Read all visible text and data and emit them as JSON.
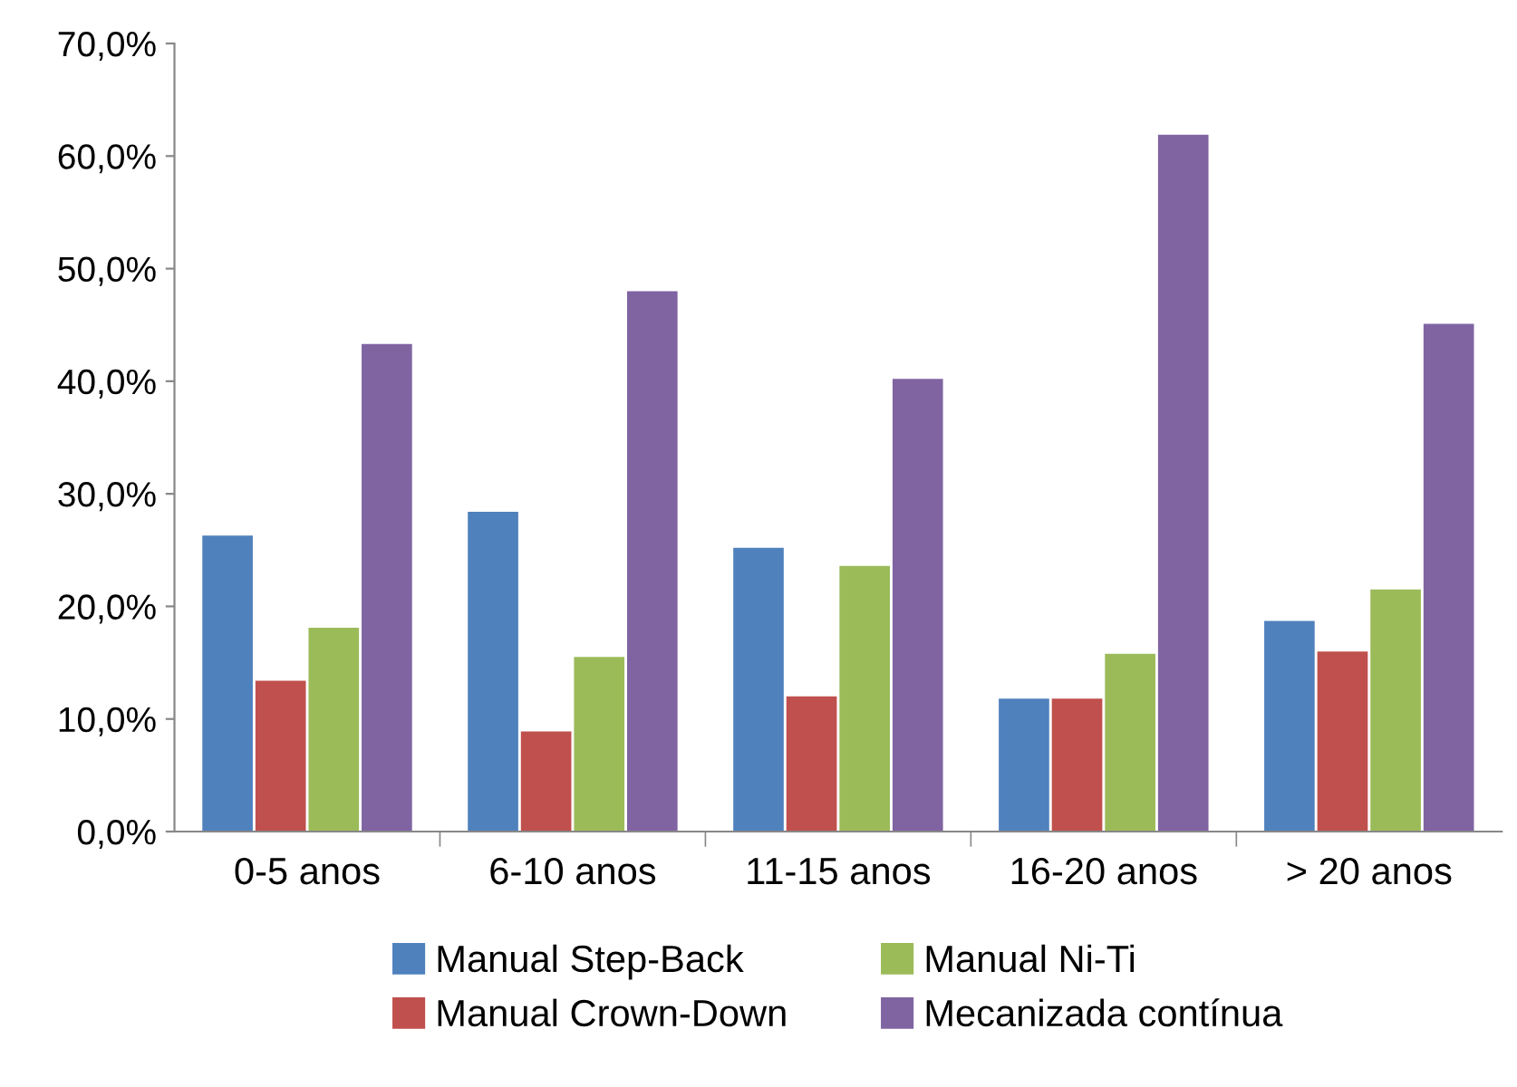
{
  "chart_data": {
    "type": "bar",
    "categories": [
      "0-5 anos",
      "6-10 anos",
      "11-15 anos",
      "16-20 anos",
      "> 20 anos"
    ],
    "series": [
      {
        "name": "Manual Step-Back",
        "color": "#4f81bd",
        "values": [
          26.3,
          28.4,
          25.2,
          11.8,
          18.7
        ]
      },
      {
        "name": "Manual Crown-Down",
        "color": "#c0504d",
        "values": [
          13.4,
          8.9,
          12.0,
          11.8,
          16.0
        ]
      },
      {
        "name": "Manual Ni-Ti",
        "color": "#9bbb59",
        "values": [
          18.1,
          15.5,
          23.6,
          15.8,
          21.5
        ]
      },
      {
        "name": "Mecanizada contínua",
        "color": "#8064a2",
        "values": [
          43.3,
          48.0,
          40.2,
          61.9,
          45.1
        ]
      }
    ],
    "ylim": [
      0,
      70
    ],
    "yticks": [
      {
        "value": 0,
        "label": "0,0%"
      },
      {
        "value": 10,
        "label": "10,0%"
      },
      {
        "value": 20,
        "label": "20,0%"
      },
      {
        "value": 30,
        "label": "30,0%"
      },
      {
        "value": 40,
        "label": "40,0%"
      },
      {
        "value": 50,
        "label": "50,0%"
      },
      {
        "value": 60,
        "label": "60,0%"
      },
      {
        "value": 70,
        "label": "70,0%"
      }
    ],
    "grid": false,
    "legend": "bottom"
  }
}
